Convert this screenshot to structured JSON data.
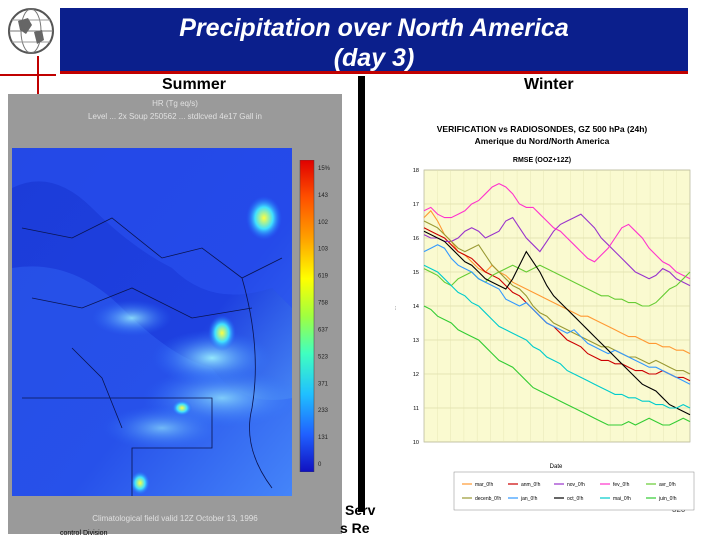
{
  "title": {
    "line1": "Precipitation over North America",
    "line2": "(day 3)"
  },
  "labels": {
    "summer": "Summer",
    "winter": "Winter"
  },
  "summer_panel": {
    "caption_top_1": "HR (Tg eq/s)",
    "caption_top_2": "Level ... 2x Soup 250562 ... stdlcved 4e17 Gall in",
    "caption_bottom": "Climatological field valid 12Z October 13, 1996",
    "colorbar_ticks": [
      "15%",
      "143",
      "102",
      "103",
      "619",
      "758",
      "637",
      "523",
      "371",
      "233",
      "131",
      "0"
    ]
  },
  "footer": {
    "line1": "Serv",
    "line2": "s Re",
    "line3": "control Division",
    "page_number": "320"
  },
  "colors": {
    "title_bg": "#0b1f8c",
    "accent_red": "#c00000",
    "chart_bg": "#fafad0"
  },
  "chart_data": {
    "type": "line",
    "title": "VERIFICATION vs RADIOSONDES, GZ 500 hPa (24h)",
    "subtitle": "Amerique du Nord/North America",
    "subtitle2": "RMSE (OOZ+12Z)",
    "ylabel": "...",
    "xlabel": "Date",
    "ylim": [
      10,
      18
    ],
    "yticks": [
      "18",
      "17",
      "16",
      "15",
      "14",
      "13",
      "12",
      "11",
      "10"
    ],
    "x": [
      1,
      2,
      3,
      4,
      5,
      6,
      7,
      8,
      9,
      10,
      11,
      12,
      13,
      14,
      15,
      16,
      17,
      18,
      19,
      20,
      21,
      22,
      23,
      24,
      25,
      26,
      27,
      28,
      29,
      30,
      31,
      32,
      33,
      34,
      35,
      36,
      37,
      38,
      39,
      40
    ],
    "series": [
      {
        "name": "mar_0!h",
        "color": "#ff9933",
        "values": [
          16.6,
          16.8,
          16.5,
          16.1,
          15.9,
          15.6,
          15.5,
          15.3,
          15.1,
          15.0,
          15.2,
          15.0,
          14.9,
          14.7,
          14.6,
          14.5,
          14.4,
          14.3,
          14.2,
          14.1,
          14.0,
          13.9,
          13.8,
          13.7,
          13.7,
          13.6,
          13.5,
          13.4,
          13.3,
          13.2,
          13.1,
          13.1,
          13.0,
          12.9,
          12.9,
          12.8,
          12.8,
          12.7,
          12.7,
          12.6
        ]
      },
      {
        "name": "anm_0!h",
        "color": "#cc0000",
        "values": [
          16.3,
          16.2,
          16.1,
          16.0,
          15.8,
          15.6,
          15.5,
          15.4,
          15.2,
          15.0,
          14.9,
          14.8,
          14.6,
          14.4,
          14.3,
          14.1,
          13.9,
          13.7,
          13.5,
          13.4,
          13.2,
          13.0,
          12.9,
          12.8,
          12.6,
          12.5,
          12.4,
          12.4,
          12.3,
          12.3,
          12.2,
          12.1,
          12.1,
          12.0,
          12.0,
          12.1,
          12.0,
          11.9,
          11.9,
          11.8
        ]
      },
      {
        "name": "nov_0!h",
        "color": "#9933cc",
        "values": [
          16.1,
          16.0,
          16.0,
          15.9,
          15.9,
          16.0,
          16.2,
          16.3,
          16.2,
          16.0,
          16.1,
          16.2,
          16.5,
          16.6,
          16.3,
          16.0,
          15.8,
          15.6,
          15.9,
          16.2,
          16.4,
          16.5,
          16.6,
          16.7,
          16.5,
          16.3,
          16.0,
          15.8,
          15.6,
          15.4,
          15.2,
          15.0,
          14.9,
          14.8,
          14.9,
          15.1,
          15.0,
          14.8,
          14.7,
          14.6
        ]
      },
      {
        "name": "fev_0!h",
        "color": "#ff33cc",
        "values": [
          16.8,
          16.9,
          16.7,
          16.6,
          16.6,
          16.7,
          16.8,
          17.0,
          17.1,
          17.3,
          17.5,
          17.6,
          17.5,
          17.3,
          17.0,
          16.9,
          16.9,
          16.7,
          16.5,
          16.3,
          16.2,
          16.0,
          15.8,
          15.6,
          15.4,
          15.3,
          15.5,
          15.7,
          16.0,
          16.3,
          16.4,
          16.2,
          16.0,
          15.7,
          15.5,
          15.3,
          15.2,
          15.0,
          14.9,
          14.8
        ]
      },
      {
        "name": "avr_0!h",
        "color": "#66cc33",
        "values": [
          15.1,
          15.0,
          14.9,
          14.7,
          14.6,
          14.8,
          14.9,
          15.0,
          14.8,
          14.7,
          14.9,
          15.0,
          15.1,
          15.2,
          15.1,
          15.0,
          15.1,
          15.2,
          15.1,
          15.0,
          14.9,
          14.8,
          14.7,
          14.6,
          14.5,
          14.4,
          14.3,
          14.3,
          14.2,
          14.2,
          14.1,
          14.1,
          14.0,
          14.0,
          14.1,
          14.3,
          14.5,
          14.6,
          14.8,
          15.0
        ]
      },
      {
        "name": "decenb_0!h",
        "color": "#999933",
        "values": [
          16.5,
          16.4,
          16.3,
          16.1,
          15.9,
          15.7,
          15.6,
          15.7,
          15.8,
          15.5,
          15.2,
          15.0,
          14.8,
          14.6,
          14.5,
          14.3,
          14.0,
          13.8,
          13.7,
          13.5,
          13.4,
          13.3,
          13.2,
          13.1,
          13.0,
          12.9,
          12.8,
          12.8,
          12.7,
          12.6,
          12.5,
          12.5,
          12.4,
          12.3,
          12.4,
          12.3,
          12.2,
          12.1,
          12.1,
          12.0
        ]
      },
      {
        "name": "jan_0!h",
        "color": "#3399ff",
        "values": [
          15.6,
          15.7,
          15.8,
          15.7,
          15.4,
          15.2,
          15.1,
          15.0,
          14.8,
          14.7,
          14.6,
          14.5,
          14.2,
          14.1,
          14.0,
          14.1,
          13.9,
          13.7,
          13.5,
          13.4,
          13.3,
          13.2,
          13.3,
          13.1,
          12.9,
          12.8,
          12.7,
          12.6,
          12.7,
          12.6,
          12.5,
          12.4,
          12.3,
          12.2,
          12.2,
          12.1,
          12.0,
          11.9,
          11.8,
          11.7
        ]
      },
      {
        "name": "oct_0!h",
        "color": "#000000",
        "values": [
          16.2,
          16.1,
          16.0,
          15.9,
          15.7,
          15.5,
          15.3,
          15.2,
          15.0,
          14.8,
          14.7,
          14.6,
          14.5,
          14.8,
          15.2,
          15.6,
          15.3,
          15.0,
          14.6,
          14.3,
          14.1,
          13.9,
          13.7,
          13.5,
          13.3,
          13.1,
          12.9,
          12.7,
          12.5,
          12.3,
          12.1,
          11.9,
          11.7,
          11.6,
          11.5,
          11.3,
          11.1,
          11.0,
          10.9,
          10.8
        ]
      },
      {
        "name": "mai_0!h",
        "color": "#00cccc",
        "values": [
          15.2,
          15.1,
          15.0,
          14.8,
          14.6,
          14.4,
          14.3,
          14.1,
          14.0,
          13.8,
          13.6,
          13.4,
          13.3,
          13.2,
          13.1,
          13.0,
          12.8,
          12.7,
          12.5,
          12.4,
          12.3,
          12.1,
          12.0,
          11.9,
          11.8,
          11.7,
          11.6,
          11.5,
          11.4,
          11.4,
          11.3,
          11.3,
          11.2,
          11.2,
          11.1,
          11.1,
          11.0,
          11.0,
          11.1,
          11.0
        ]
      },
      {
        "name": "juin_0!h",
        "color": "#33cc33",
        "values": [
          14.0,
          13.9,
          13.7,
          13.6,
          13.5,
          13.3,
          13.2,
          13.1,
          13.0,
          12.8,
          12.6,
          12.4,
          12.3,
          12.2,
          12.0,
          11.8,
          11.6,
          11.5,
          11.4,
          11.3,
          11.2,
          11.1,
          11.0,
          10.9,
          10.8,
          10.7,
          10.6,
          10.5,
          10.5,
          10.5,
          10.6,
          10.5,
          10.6,
          10.7,
          10.6,
          10.5,
          10.5,
          10.6,
          10.7,
          10.6
        ]
      }
    ]
  }
}
